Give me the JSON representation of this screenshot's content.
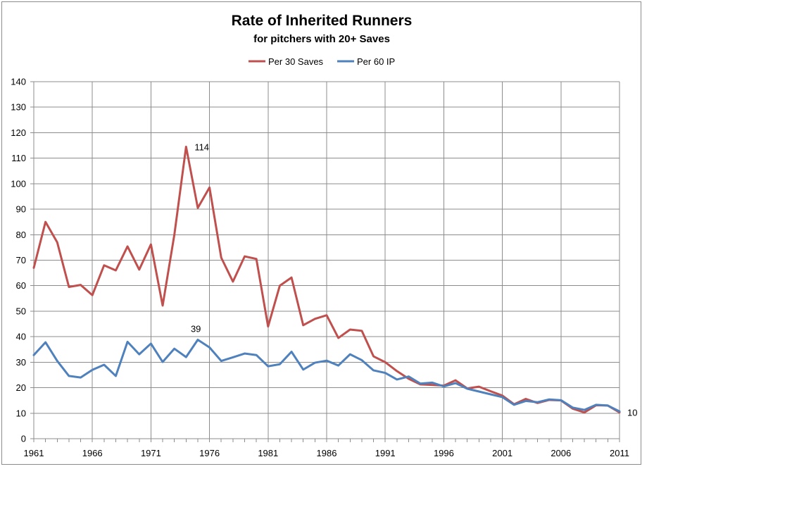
{
  "chart_data": {
    "type": "line",
    "title": "Rate of Inherited Runners",
    "subtitle": "for pitchers with 20+ Saves",
    "xlabel": "",
    "ylabel": "",
    "xlim": [
      1961,
      2011
    ],
    "ylim": [
      0,
      140
    ],
    "x_ticks": [
      1961,
      1966,
      1971,
      1976,
      1981,
      1986,
      1991,
      1996,
      2001,
      2006,
      2011
    ],
    "y_ticks": [
      0,
      10,
      20,
      30,
      40,
      50,
      60,
      70,
      80,
      90,
      100,
      110,
      120,
      130,
      140
    ],
    "grid": true,
    "legend_position": "top",
    "x": [
      1961,
      1962,
      1963,
      1964,
      1965,
      1966,
      1967,
      1968,
      1969,
      1970,
      1971,
      1972,
      1973,
      1974,
      1975,
      1976,
      1977,
      1978,
      1979,
      1980,
      1981,
      1982,
      1983,
      1984,
      1985,
      1986,
      1987,
      1988,
      1989,
      1990,
      1991,
      1992,
      1993,
      1994,
      1995,
      1996,
      1997,
      1998,
      1999,
      2000,
      2001,
      2002,
      2003,
      2004,
      2005,
      2006,
      2007,
      2008,
      2009,
      2010,
      2011
    ],
    "series": [
      {
        "name": "Per 30 Saves",
        "color": "#c0504d",
        "values": [
          67,
          85,
          77,
          59.5,
          60.3,
          56.3,
          68,
          66,
          75.4,
          66.3,
          76.2,
          52.2,
          80,
          114.5,
          90.5,
          98.5,
          71,
          61.6,
          71.5,
          70.5,
          44,
          60,
          63.2,
          44.5,
          47,
          48.4,
          39.5,
          42.8,
          42.3,
          32.3,
          30,
          26.5,
          23.5,
          21.3,
          21.1,
          20.8,
          22.9,
          19.7,
          20.4,
          18.6,
          16.9,
          13.5,
          15.6,
          14,
          15.2,
          15,
          11.8,
          10.3,
          13.1,
          13,
          10.3
        ]
      },
      {
        "name": "Per 60 IP",
        "color": "#4f81bd",
        "values": [
          32.8,
          37.8,
          30.5,
          24.6,
          24,
          27,
          29,
          24.6,
          38,
          33.1,
          37.3,
          30.1,
          35.3,
          32,
          38.8,
          35.8,
          30.5,
          31.9,
          33.4,
          32.8,
          28.4,
          29.2,
          34.1,
          27.1,
          29.8,
          30.6,
          28.7,
          33.1,
          30.8,
          26.8,
          25.8,
          23.2,
          24.4,
          21.6,
          22,
          20.5,
          21.8,
          19.6,
          18.5,
          17.4,
          16.3,
          13.3,
          14.8,
          14.3,
          15.4,
          15.1,
          12.2,
          11.3,
          13.3,
          13,
          10.7
        ]
      }
    ],
    "annotations": [
      {
        "series": "Per 30 Saves",
        "x": 1974,
        "y": 114.5,
        "label": "114"
      },
      {
        "series": "Per 60 IP",
        "x": 1975,
        "y": 38.8,
        "label": "39"
      },
      {
        "series": "Per 30 Saves",
        "x": 2011,
        "y": 10.3,
        "label": "10"
      }
    ]
  }
}
